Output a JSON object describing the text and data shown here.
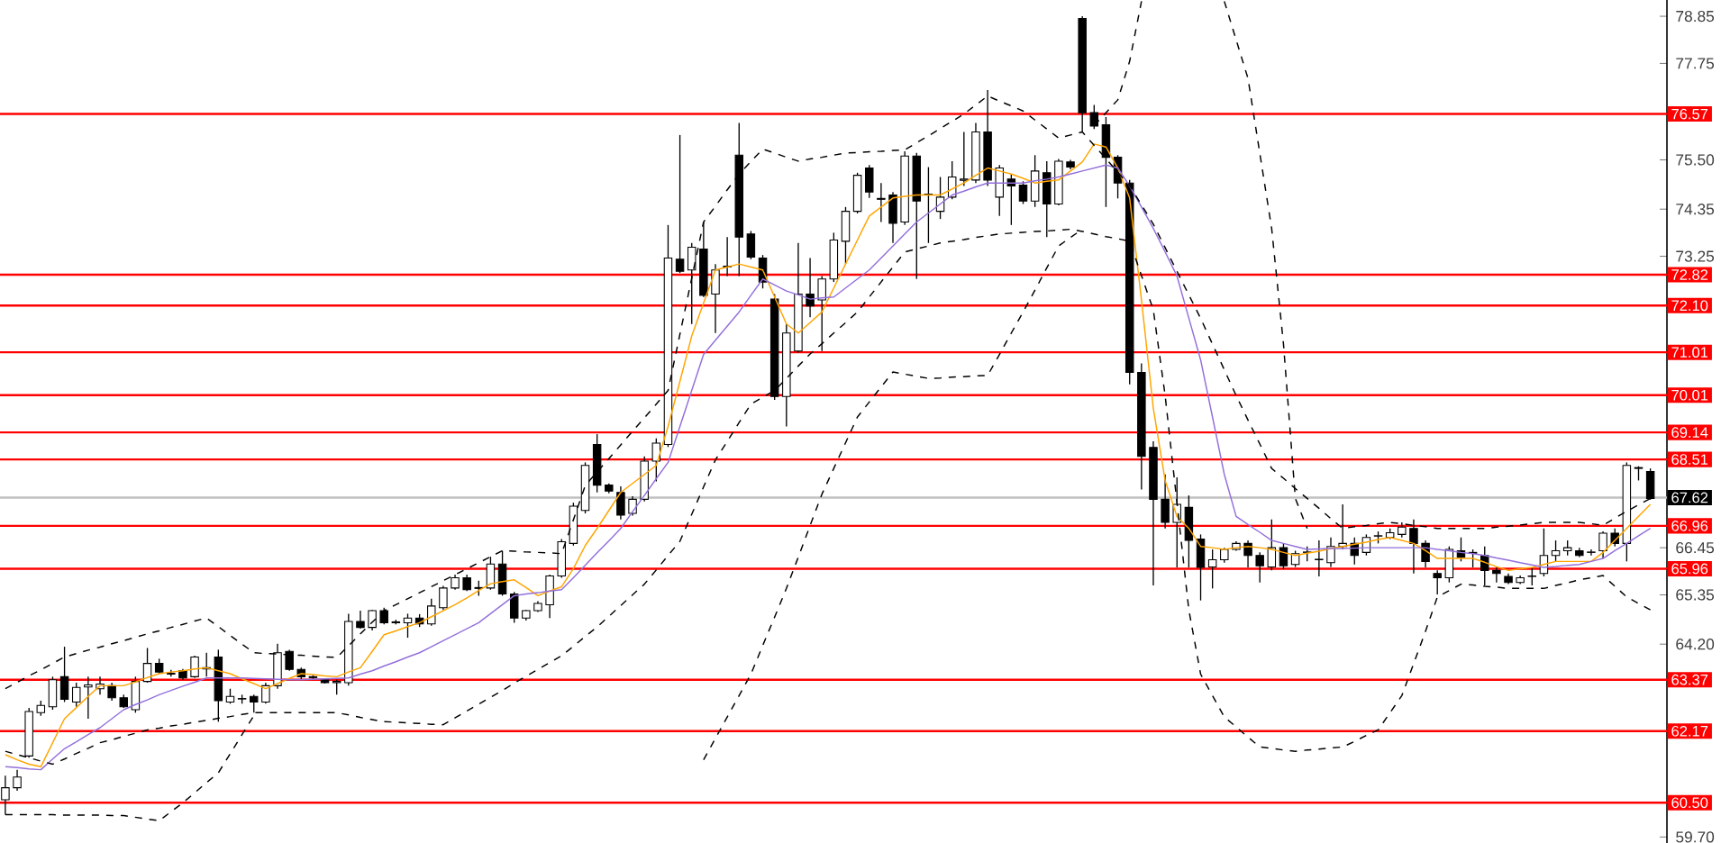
{
  "chart_data": {
    "type": "candlestick",
    "categories": [
      null,
      null,
      null,
      null,
      null,
      null,
      null,
      null,
      null,
      null,
      null,
      null,
      null,
      null,
      null,
      null,
      null,
      null,
      null,
      null,
      null,
      null,
      null,
      null,
      null,
      null,
      null,
      null,
      null,
      null,
      null,
      null,
      null,
      null,
      null,
      null,
      null,
      null,
      null,
      null,
      null,
      null,
      null,
      null,
      null,
      null,
      null,
      null,
      null,
      null,
      null,
      null,
      null,
      null,
      null,
      null,
      null,
      null,
      null,
      null,
      null,
      null,
      null,
      null,
      null,
      null,
      null,
      null,
      null,
      null,
      null,
      null,
      null,
      null,
      null,
      null,
      null,
      null,
      null,
      null,
      null,
      null,
      null,
      null,
      null,
      null,
      null,
      null,
      null,
      null,
      null,
      null,
      null,
      null,
      null,
      null,
      null,
      null,
      null,
      null,
      null,
      null,
      null,
      null,
      null,
      null,
      null,
      null,
      null,
      null,
      null,
      null,
      null,
      null,
      null,
      null,
      null,
      null,
      null,
      null,
      null,
      null,
      null,
      null,
      null,
      null,
      null,
      null,
      null,
      null,
      null,
      null,
      null,
      null,
      null,
      null,
      null,
      null,
      null,
      null
    ],
    "ohlc": [
      [
        60.57,
        61.13,
        60.22,
        60.85
      ],
      [
        60.85,
        61.27,
        60.78,
        61.1
      ],
      [
        61.59,
        62.71,
        61.55,
        62.63
      ],
      [
        62.6,
        62.88,
        62.53,
        62.77
      ],
      [
        62.74,
        63.44,
        62.67,
        63.37
      ],
      [
        63.44,
        64.14,
        62.85,
        62.91
      ],
      [
        62.85,
        63.3,
        62.74,
        63.19
      ],
      [
        63.2,
        63.44,
        62.46,
        63.25
      ],
      [
        63.16,
        63.44,
        63.02,
        63.27
      ],
      [
        63.23,
        63.3,
        62.88,
        62.95
      ],
      [
        62.95,
        63.02,
        62.71,
        62.74
      ],
      [
        62.67,
        63.44,
        62.6,
        63.33
      ],
      [
        63.33,
        64.11,
        63.3,
        63.75
      ],
      [
        63.75,
        63.86,
        63.51,
        63.55
      ],
      [
        63.5,
        63.6,
        63.44,
        63.52
      ],
      [
        63.58,
        63.62,
        63.37,
        63.41
      ],
      [
        63.44,
        63.93,
        63.41,
        63.9
      ],
      [
        63.62,
        64.0,
        63.44,
        63.65
      ],
      [
        63.9,
        64.07,
        62.39,
        62.88
      ],
      [
        62.85,
        63.16,
        62.81,
        62.98
      ],
      [
        62.93,
        63.02,
        62.81,
        62.92
      ],
      [
        62.98,
        63.02,
        62.6,
        62.85
      ],
      [
        62.85,
        63.3,
        62.81,
        63.23
      ],
      [
        63.23,
        64.21,
        63.16,
        64.0
      ],
      [
        64.03,
        64.07,
        63.58,
        63.61
      ],
      [
        63.61,
        63.65,
        63.37,
        63.44
      ],
      [
        63.44,
        63.48,
        63.37,
        63.42
      ],
      [
        63.37,
        63.4,
        63.28,
        63.3
      ],
      [
        63.3,
        63.37,
        63.02,
        63.33
      ],
      [
        63.3,
        64.91,
        63.23,
        64.73
      ],
      [
        64.73,
        64.98,
        64.56,
        64.59
      ],
      [
        64.59,
        65.0,
        64.52,
        64.98
      ],
      [
        64.98,
        65.05,
        64.66,
        64.7
      ],
      [
        64.7,
        64.77,
        64.66,
        64.72
      ],
      [
        64.7,
        64.91,
        64.35,
        64.81
      ],
      [
        64.81,
        64.9,
        64.6,
        64.67
      ],
      [
        64.67,
        65.26,
        64.63,
        65.09
      ],
      [
        65.05,
        65.56,
        65.0,
        65.51
      ],
      [
        65.51,
        65.82,
        65.47,
        65.75
      ],
      [
        65.75,
        65.82,
        65.44,
        65.47
      ],
      [
        65.5,
        65.68,
        65.33,
        65.52
      ],
      [
        65.51,
        66.24,
        65.47,
        66.07
      ],
      [
        66.07,
        66.38,
        65.33,
        65.37
      ],
      [
        65.37,
        65.42,
        64.7,
        64.81
      ],
      [
        64.81,
        65.0,
        64.75,
        64.98
      ],
      [
        64.98,
        65.2,
        64.95,
        65.15
      ],
      [
        65.12,
        65.82,
        64.81,
        65.79
      ],
      [
        65.79,
        66.65,
        65.75,
        66.59
      ],
      [
        66.55,
        67.5,
        66.5,
        67.42
      ],
      [
        67.32,
        68.44,
        67.25,
        68.37
      ],
      [
        68.86,
        69.1,
        67.74,
        67.91
      ],
      [
        67.91,
        67.95,
        67.72,
        67.77
      ],
      [
        67.74,
        67.88,
        67.11,
        67.21
      ],
      [
        67.25,
        67.65,
        67.2,
        67.58
      ],
      [
        67.58,
        68.58,
        67.53,
        68.47
      ],
      [
        68.47,
        69.0,
        68.0,
        68.89
      ],
      [
        68.86,
        73.98,
        68.8,
        73.21
      ],
      [
        73.18,
        76.08,
        72.86,
        72.9
      ],
      [
        72.93,
        73.56,
        71.67,
        73.46
      ],
      [
        73.42,
        74.05,
        72.3,
        72.34
      ],
      [
        72.37,
        73.07,
        71.46,
        72.93
      ],
      [
        73.0,
        73.7,
        72.79,
        73.02
      ],
      [
        75.61,
        76.36,
        72.79,
        73.7
      ],
      [
        73.77,
        73.84,
        73.18,
        73.23
      ],
      [
        73.21,
        73.28,
        72.5,
        72.65
      ],
      [
        72.25,
        72.37,
        69.9,
        69.98
      ],
      [
        69.98,
        71.67,
        69.28,
        71.46
      ],
      [
        71.04,
        73.56,
        71.0,
        72.37
      ],
      [
        72.37,
        73.21,
        71.83,
        72.09
      ],
      [
        72.23,
        72.79,
        71.04,
        72.72
      ],
      [
        72.72,
        73.8,
        72.65,
        73.63
      ],
      [
        73.6,
        74.4,
        73.07,
        74.3
      ],
      [
        74.3,
        75.2,
        74.25,
        75.14
      ],
      [
        75.31,
        75.38,
        74.61,
        74.75
      ],
      [
        74.6,
        74.96,
        74.05,
        74.58
      ],
      [
        74.68,
        74.75,
        73.56,
        74.02
      ],
      [
        74.05,
        75.7,
        73.98,
        75.59
      ],
      [
        75.59,
        75.66,
        72.72,
        74.54
      ],
      [
        74.68,
        75.33,
        73.56,
        74.7
      ],
      [
        74.3,
        75.1,
        74.12,
        74.63
      ],
      [
        74.63,
        75.47,
        74.58,
        75.1
      ],
      [
        75.02,
        76.15,
        74.89,
        75.05
      ],
      [
        75.03,
        76.36,
        74.96,
        76.15
      ],
      [
        76.15,
        77.13,
        74.89,
        75.03
      ],
      [
        74.63,
        75.38,
        74.19,
        75.31
      ],
      [
        75.05,
        75.17,
        73.98,
        74.89
      ],
      [
        74.91,
        75.0,
        74.47,
        74.54
      ],
      [
        74.54,
        75.61,
        74.4,
        75.24
      ],
      [
        75.2,
        75.47,
        73.7,
        74.47
      ],
      [
        74.47,
        75.52,
        74.44,
        75.47
      ],
      [
        75.45,
        75.5,
        75.28,
        75.33
      ],
      [
        78.8,
        78.85,
        76.15,
        76.6
      ],
      [
        76.6,
        76.78,
        76.22,
        76.29
      ],
      [
        76.32,
        76.5,
        74.4,
        75.56
      ],
      [
        75.56,
        75.61,
        74.6,
        74.96
      ],
      [
        74.96,
        75.03,
        70.26,
        70.54
      ],
      [
        70.54,
        70.75,
        67.81,
        68.58
      ],
      [
        68.79,
        68.93,
        65.57,
        67.58
      ],
      [
        67.58,
        68.16,
        66.9,
        67.04
      ],
      [
        67.04,
        68.09,
        65.99,
        67.46
      ],
      [
        67.39,
        67.67,
        65.99,
        66.62
      ],
      [
        66.65,
        66.76,
        65.22,
        65.99
      ],
      [
        66.0,
        66.41,
        65.5,
        66.17
      ],
      [
        66.17,
        66.45,
        66.1,
        66.41
      ],
      [
        66.41,
        66.6,
        66.38,
        66.55
      ],
      [
        66.55,
        66.62,
        65.99,
        66.27
      ],
      [
        66.27,
        66.34,
        65.64,
        66.03
      ],
      [
        66.0,
        67.11,
        65.92,
        66.45
      ],
      [
        66.45,
        66.55,
        65.95,
        66.03
      ],
      [
        66.06,
        66.38,
        66.0,
        66.31
      ],
      [
        66.34,
        66.48,
        66.13,
        66.35
      ],
      [
        66.17,
        66.62,
        65.78,
        66.18
      ],
      [
        66.1,
        66.69,
        66.0,
        66.48
      ],
      [
        66.48,
        67.46,
        66.41,
        66.55
      ],
      [
        66.55,
        66.69,
        66.06,
        66.27
      ],
      [
        66.34,
        66.76,
        66.27,
        66.69
      ],
      [
        66.72,
        66.83,
        66.55,
        66.73
      ],
      [
        66.69,
        66.9,
        66.65,
        66.8
      ],
      [
        66.76,
        67.04,
        66.69,
        66.93
      ],
      [
        66.9,
        67.11,
        65.85,
        66.55
      ],
      [
        66.55,
        66.62,
        65.99,
        66.13
      ],
      [
        65.85,
        65.92,
        65.36,
        65.75
      ],
      [
        65.75,
        66.48,
        65.64,
        66.41
      ],
      [
        66.38,
        66.69,
        66.13,
        66.23
      ],
      [
        66.34,
        66.41,
        65.99,
        66.32
      ],
      [
        66.27,
        66.48,
        65.57,
        65.92
      ],
      [
        65.92,
        65.99,
        65.64,
        65.85
      ],
      [
        65.78,
        65.85,
        65.6,
        65.64
      ],
      [
        65.64,
        65.8,
        65.6,
        65.75
      ],
      [
        65.78,
        65.99,
        65.57,
        65.79
      ],
      [
        65.85,
        66.9,
        65.78,
        66.27
      ],
      [
        66.27,
        66.62,
        66.13,
        66.38
      ],
      [
        66.38,
        66.62,
        66.27,
        66.45
      ],
      [
        66.38,
        66.45,
        66.23,
        66.27
      ],
      [
        66.34,
        66.41,
        66.27,
        66.35
      ],
      [
        66.38,
        66.83,
        66.2,
        66.79
      ],
      [
        66.79,
        66.9,
        66.48,
        66.55
      ],
      [
        66.55,
        68.44,
        66.13,
        68.37
      ],
      [
        68.3,
        68.35,
        68.02,
        68.32
      ],
      [
        68.23,
        68.3,
        67.57,
        67.6
      ]
    ],
    "series": [
      {
        "type": "line",
        "color": "#ffa500",
        "line_style": "solid",
        "values": [
          61.62,
          61.5,
          61.4,
          61.34,
          61.9,
          62.46,
          62.72,
          62.98,
          63.23,
          63.23,
          63.23,
          63.32,
          63.42,
          63.51,
          63.55,
          63.58,
          63.62,
          63.65,
          63.58,
          63.51,
          63.39,
          63.28,
          63.16,
          63.28,
          63.4,
          63.51,
          63.49,
          63.46,
          63.44,
          63.55,
          63.65,
          64.03,
          64.42,
          64.51,
          64.61,
          64.7,
          64.84,
          64.98,
          65.12,
          65.28,
          65.45,
          65.61,
          65.66,
          65.7,
          65.52,
          65.33,
          65.44,
          65.54,
          65.96,
          66.5,
          66.9,
          67.32,
          67.74,
          67.95,
          68.16,
          68.37,
          69.28,
          70.33,
          71.39,
          72.16,
          72.93,
          73.0,
          73.07,
          73.0,
          72.93,
          72.3,
          71.67,
          71.46,
          71.7,
          71.95,
          72.51,
          73.07,
          73.63,
          74.19,
          74.4,
          74.61,
          74.65,
          74.68,
          74.68,
          74.68,
          74.82,
          74.96,
          75.14,
          75.31,
          75.24,
          75.17,
          75.07,
          74.96,
          75.0,
          75.03,
          75.24,
          75.45,
          75.87,
          75.8,
          75.31,
          74.61,
          72.23,
          69.7,
          68.02,
          67.18,
          66.9,
          66.48,
          66.45,
          66.41,
          66.45,
          66.48,
          66.45,
          66.41,
          66.34,
          66.27,
          66.32,
          66.37,
          66.43,
          66.48,
          66.53,
          66.58,
          66.64,
          66.69,
          66.62,
          66.55,
          66.38,
          66.2,
          66.2,
          66.2,
          66.2,
          66.11,
          66.01,
          65.92,
          65.96,
          65.99,
          66.06,
          66.13,
          66.13,
          66.13,
          66.13,
          66.34,
          66.62,
          66.9,
          67.18,
          67.46
        ]
      },
      {
        "type": "line",
        "color": "#9370db",
        "line_style": "solid",
        "values": [
          61.34,
          61.32,
          61.29,
          61.27,
          61.52,
          61.76,
          61.92,
          62.09,
          62.25,
          62.46,
          62.67,
          62.79,
          62.9,
          63.02,
          63.12,
          63.22,
          63.31,
          63.41,
          63.41,
          63.41,
          63.41,
          63.4,
          63.39,
          63.38,
          63.37,
          63.37,
          63.38,
          63.39,
          63.4,
          63.41,
          63.5,
          63.58,
          63.69,
          63.79,
          63.9,
          64.0,
          64.14,
          64.28,
          64.42,
          64.56,
          64.7,
          64.91,
          65.12,
          65.33,
          65.37,
          65.4,
          65.44,
          65.47,
          65.75,
          66.04,
          66.33,
          66.61,
          66.9,
          67.29,
          67.67,
          68.06,
          68.44,
          69.28,
          70.12,
          70.96,
          71.29,
          71.62,
          71.95,
          72.34,
          72.72,
          72.58,
          72.44,
          72.35,
          72.25,
          72.28,
          72.3,
          72.51,
          72.72,
          72.93,
          73.21,
          73.49,
          73.77,
          74.05,
          74.26,
          74.47,
          74.68,
          74.77,
          74.87,
          74.96,
          74.96,
          74.96,
          74.96,
          75.01,
          75.05,
          75.1,
          75.17,
          75.24,
          75.31,
          75.38,
          75.31,
          74.89,
          74.4,
          73.9,
          73.35,
          72.79,
          71.81,
          70.83,
          69.5,
          68.16,
          67.18,
          66.99,
          66.81,
          66.62,
          66.55,
          66.48,
          66.41,
          66.42,
          66.43,
          66.43,
          66.44,
          66.45,
          66.45,
          66.45,
          66.45,
          66.45,
          66.45,
          66.41,
          66.38,
          66.34,
          66.31,
          66.27,
          66.21,
          66.16,
          66.1,
          66.05,
          65.99,
          66.01,
          66.04,
          66.06,
          66.13,
          66.2,
          66.38,
          66.55,
          66.73,
          66.9
        ]
      },
      {
        "type": "line",
        "color": "#000000",
        "line_style": "dashed",
        "values": [
          63.16,
          63.31,
          63.46,
          63.6,
          63.75,
          63.9,
          63.98,
          64.06,
          64.13,
          64.21,
          64.28,
          64.36,
          64.44,
          64.51,
          64.59,
          64.66,
          64.74,
          64.81,
          64.61,
          64.4,
          64.2,
          64.0,
          63.98,
          63.97,
          63.95,
          63.94,
          63.92,
          63.9,
          63.89,
          64.16,
          64.44,
          64.71,
          64.98,
          65.12,
          65.26,
          65.4,
          65.54,
          65.68,
          65.82,
          65.96,
          66.1,
          66.24,
          66.38,
          66.37,
          66.35,
          66.34,
          66.33,
          66.31,
          67.1,
          67.9,
          68.22,
          68.53,
          68.85,
          69.17,
          69.48,
          69.8,
          70.12,
          71.43,
          72.74,
          74.05,
          74.42,
          74.8,
          75.17,
          75.46,
          75.75,
          75.66,
          75.56,
          75.47,
          75.52,
          75.56,
          75.61,
          75.66,
          75.67,
          75.69,
          75.7,
          75.72,
          75.73,
          75.9,
          76.06,
          76.23,
          76.4,
          76.57,
          76.78,
          76.99,
          76.87,
          76.76,
          76.64,
          76.43,
          76.22,
          76.01,
          76.08,
          76.15,
          75.84,
          75.53,
          75.21,
          74.9,
          74.45,
          74.0,
          73.45,
          72.9,
          72.35,
          71.8,
          71.2,
          70.6,
          70.0,
          69.43,
          68.87,
          68.3,
          68.07,
          67.83,
          67.6,
          67.37,
          67.13,
          66.9,
          66.94,
          66.97,
          67.01,
          67.04,
          67.01,
          66.97,
          66.94,
          66.9,
          66.9,
          66.9,
          66.9,
          66.9,
          66.93,
          66.95,
          66.98,
          67.01,
          67.04,
          67.04,
          67.04,
          67.04,
          67.01,
          66.97,
          67.14,
          67.3,
          67.45,
          67.6
        ]
      },
      {
        "type": "line",
        "color": "#000000",
        "line_style": "dashed",
        "values": [
          null,
          null,
          null,
          null,
          null,
          null,
          null,
          null,
          null,
          null,
          null,
          null,
          null,
          null,
          null,
          null,
          null,
          null,
          null,
          null,
          null,
          null,
          null,
          null,
          null,
          null,
          null,
          null,
          null,
          null,
          null,
          null,
          null,
          null,
          null,
          null,
          null,
          null,
          null,
          null,
          null,
          null,
          null,
          null,
          null,
          null,
          null,
          null,
          null,
          null,
          null,
          null,
          null,
          null,
          null,
          null,
          null,
          null,
          null,
          null,
          null,
          null,
          null,
          null,
          null,
          null,
          null,
          null,
          null,
          null,
          null,
          null,
          null,
          null,
          null,
          null,
          null,
          null,
          null,
          null,
          null,
          null,
          null,
          null,
          null,
          null,
          null,
          null,
          null,
          null,
          null,
          null,
          76.3,
          76.6,
          76.9,
          77.8,
          79.2,
          null,
          null,
          null,
          null,
          null,
          null,
          79.2,
          78.3,
          77.4,
          75.65,
          73.9,
          71.2,
          67.6,
          66.9,
          null,
          null,
          null,
          null,
          null,
          null,
          null,
          null,
          null,
          null,
          null,
          null,
          null,
          null,
          null,
          null,
          null,
          null,
          null,
          null,
          null,
          null,
          null,
          null,
          null,
          null,
          null,
          null,
          null
        ]
      },
      {
        "type": "line",
        "color": "#000000",
        "line_style": "dashed",
        "values": [
          61.7,
          61.62,
          61.55,
          61.47,
          61.4,
          61.52,
          61.65,
          61.77,
          61.9,
          61.97,
          62.05,
          62.12,
          62.2,
          62.24,
          62.29,
          62.33,
          62.38,
          62.42,
          62.47,
          62.51,
          62.56,
          62.6,
          62.6,
          62.6,
          62.6,
          62.6,
          62.6,
          62.6,
          62.6,
          62.55,
          62.49,
          62.44,
          62.39,
          62.38,
          62.36,
          62.35,
          62.33,
          62.32,
          62.48,
          62.64,
          62.8,
          62.96,
          63.12,
          63.29,
          63.45,
          63.61,
          63.77,
          63.93,
          64.15,
          64.38,
          64.6,
          64.85,
          65.1,
          65.35,
          65.6,
          65.93,
          66.27,
          66.6,
          67.23,
          67.87,
          68.5,
          68.93,
          69.37,
          69.8,
          69.96,
          70.12,
          70.4,
          70.69,
          70.97,
          71.21,
          71.46,
          71.7,
          71.95,
          72.3,
          72.65,
          73.0,
          73.35,
          73.42,
          73.49,
          73.56,
          73.6,
          73.64,
          73.69,
          73.73,
          73.77,
          73.79,
          73.81,
          73.83,
          73.84,
          73.86,
          73.88,
          73.83,
          73.77,
          73.71,
          73.66,
          73.6,
          72.8,
          72.0,
          70.0,
          67.5,
          65.0,
          63.5,
          63.0,
          62.5,
          62.27,
          62.03,
          61.8,
          61.77,
          61.73,
          61.7,
          61.73,
          61.75,
          61.78,
          61.8,
          61.93,
          62.07,
          62.2,
          62.6,
          63.0,
          63.75,
          64.5,
          65.3,
          65.45,
          65.6,
          65.58,
          65.55,
          65.53,
          65.5,
          65.5,
          65.5,
          65.5,
          65.57,
          65.63,
          65.7,
          65.75,
          65.8,
          65.55,
          65.3,
          65.15,
          65.0
        ]
      },
      {
        "type": "line",
        "color": "#000000",
        "line_style": "dashed",
        "values": [
          60.22,
          60.22,
          60.22,
          60.22,
          60.22,
          60.21,
          60.21,
          60.21,
          60.21,
          60.2,
          60.2,
          60.16,
          60.12,
          60.08,
          60.29,
          60.5,
          60.73,
          60.97,
          61.2,
          61.64,
          62.09,
          62.53,
          null,
          null,
          null,
          null,
          null,
          null,
          null,
          null,
          null,
          null,
          null,
          null,
          null,
          null,
          null,
          null,
          null,
          null,
          null,
          null,
          null,
          null,
          null,
          null,
          null,
          null,
          null,
          null,
          null,
          null,
          null,
          null,
          null,
          null,
          null,
          null,
          null,
          61.5,
          62.0,
          62.5,
          63.0,
          63.5,
          64.17,
          64.83,
          65.5,
          66.23,
          66.97,
          67.7,
          68.3,
          68.9,
          69.5,
          69.85,
          70.2,
          70.55,
          70.5,
          70.45,
          70.4,
          70.41,
          70.43,
          70.44,
          70.46,
          70.47,
          70.96,
          71.46,
          71.95,
          72.46,
          72.98,
          73.49,
          73.69,
          73.88,
          null,
          null,
          null,
          null,
          null,
          null,
          null,
          null,
          null,
          null,
          null,
          null,
          null,
          null,
          null,
          null,
          null,
          null,
          null,
          null,
          null,
          null,
          null,
          null,
          null,
          null,
          null,
          null,
          null,
          null,
          null,
          null,
          null,
          null,
          null,
          null,
          null,
          null,
          null,
          null,
          null,
          null,
          null,
          null,
          null,
          null,
          null,
          null
        ]
      }
    ],
    "ylim": [
      59.56,
      79.23
    ],
    "yticks": [
      78.85,
      77.75,
      {
        "value": 75.5,
        "label": "75.50"
      },
      74.35,
      73.25,
      66.45,
      65.35,
      {
        "value": 64.2,
        "label": "64.20"
      },
      {
        "value": 59.7,
        "label": "59.70"
      }
    ],
    "tick_labels": "y",
    "ref_lines": [
      {
        "axis": "y",
        "value": 76.57,
        "label": "76.57",
        "color": "#ff0000"
      },
      {
        "axis": "y",
        "value": 72.82,
        "label": "72.82",
        "color": "#ff0000"
      },
      {
        "axis": "y",
        "value": 72.1,
        "label": "72.10",
        "color": "#ff0000"
      },
      {
        "axis": "y",
        "value": 71.01,
        "label": "71.01",
        "color": "#ff0000"
      },
      {
        "axis": "y",
        "value": 70.01,
        "label": "70.01",
        "color": "#ff0000"
      },
      {
        "axis": "y",
        "value": 69.14,
        "label": "69.14",
        "color": "#ff0000"
      },
      {
        "axis": "y",
        "value": 68.51,
        "label": "68.51",
        "color": "#ff0000"
      },
      {
        "axis": "y",
        "value": 67.62,
        "label": "67.62",
        "color": "#c0c0c0"
      },
      {
        "axis": "y",
        "value": 66.96,
        "label": "66.96",
        "color": "#ff0000"
      },
      {
        "axis": "y",
        "value": 65.96,
        "label": "65.96",
        "color": "#ff0000"
      },
      {
        "axis": "y",
        "value": 63.37,
        "label": "63.37",
        "color": "#ff0000"
      },
      {
        "axis": "y",
        "value": 62.17,
        "label": "62.17",
        "color": "#ff0000"
      },
      {
        "axis": "y",
        "value": 60.5,
        "label": "60.50",
        "color": "#ff0000"
      }
    ]
  }
}
